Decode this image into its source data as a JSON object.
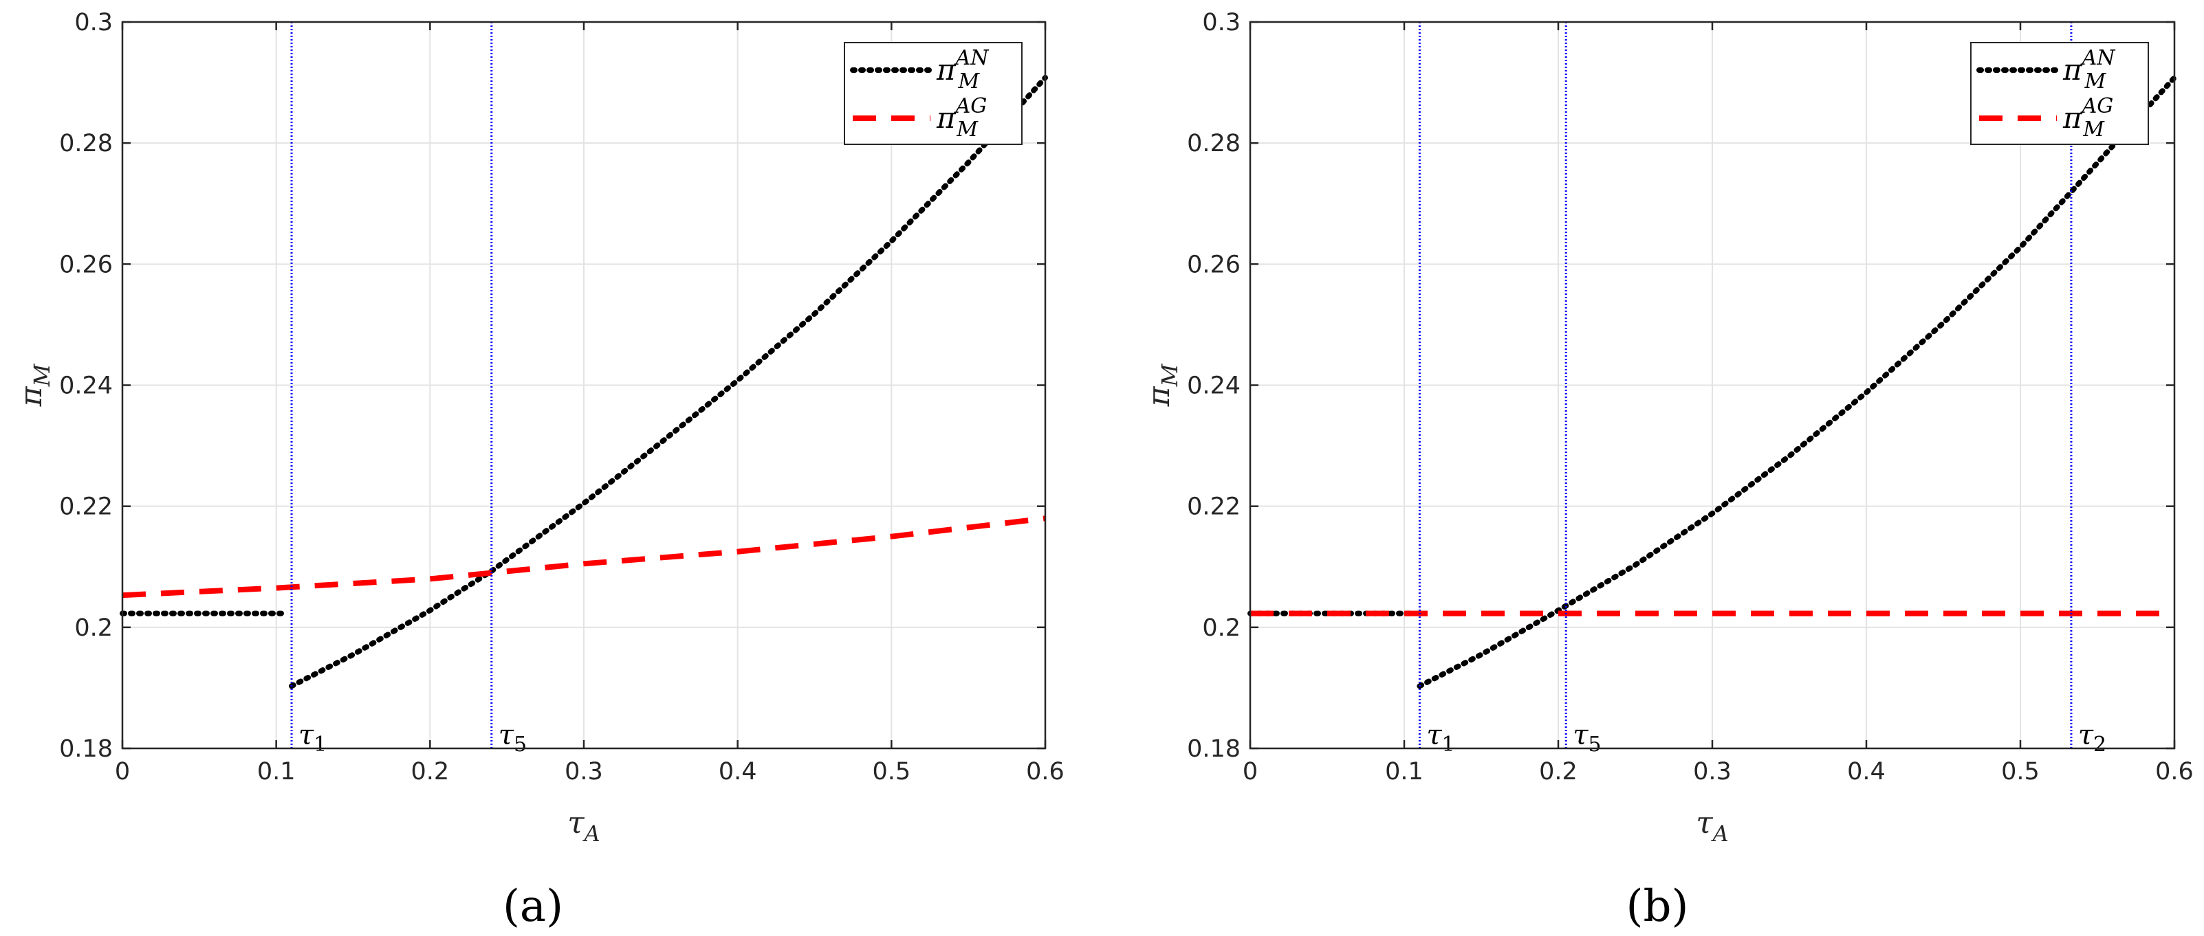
{
  "chart_data": [
    {
      "type": "line",
      "caption": "(a)",
      "xlabel": "τA",
      "ylabel": "πM",
      "xlim": [
        0,
        0.6
      ],
      "ylim": [
        0.18,
        0.3
      ],
      "xticks": [
        "0",
        "0.1",
        "0.2",
        "0.3",
        "0.4",
        "0.5",
        "0.6"
      ],
      "yticks": [
        "0.18",
        "0.2",
        "0.22",
        "0.24",
        "0.26",
        "0.28",
        "0.3"
      ],
      "grid": true,
      "legend_position": "top-right",
      "series": [
        {
          "name": "π_M^AN",
          "style": "dotted",
          "color": "#000000",
          "segments": [
            [
              [
                0,
                0.2023
              ],
              [
                0.107,
                0.2023
              ]
            ],
            [
              [
                0.11,
                0.1903
              ],
              [
                0.15,
                0.1955
              ],
              [
                0.2,
                0.2028
              ],
              [
                0.24,
                0.2093
              ],
              [
                0.3,
                0.2205
              ],
              [
                0.35,
                0.2305
              ],
              [
                0.4,
                0.2408
              ],
              [
                0.45,
                0.2518
              ],
              [
                0.5,
                0.2638
              ],
              [
                0.55,
                0.2768
              ],
              [
                0.6,
                0.2908
              ]
            ]
          ]
        },
        {
          "name": "π_M^AG",
          "style": "dashed",
          "color": "#ff0000",
          "segments": [
            [
              [
                0,
                0.2053
              ],
              [
                0.1,
                0.2065
              ],
              [
                0.2,
                0.208
              ],
              [
                0.24,
                0.209
              ],
              [
                0.3,
                0.2105
              ],
              [
                0.4,
                0.2125
              ],
              [
                0.5,
                0.215
              ],
              [
                0.6,
                0.218
              ]
            ]
          ]
        }
      ],
      "markers": [
        {
          "label_base": "τ",
          "label_sub": "1",
          "x": 0.11
        },
        {
          "label_base": "τ",
          "label_sub": "5",
          "x": 0.24
        }
      ]
    },
    {
      "type": "line",
      "caption": "(b)",
      "xlabel": "τA",
      "ylabel": "πM",
      "xlim": [
        0,
        0.6
      ],
      "ylim": [
        0.18,
        0.3
      ],
      "xticks": [
        "0",
        "0.1",
        "0.2",
        "0.3",
        "0.4",
        "0.5",
        "0.6"
      ],
      "yticks": [
        "0.18",
        "0.2",
        "0.22",
        "0.24",
        "0.26",
        "0.28",
        "0.3"
      ],
      "grid": true,
      "legend_position": "top-right",
      "series": [
        {
          "name": "π_M^AN",
          "style": "dotted",
          "color": "#000000",
          "segments": [
            [
              [
                0,
                0.2023
              ],
              [
                0.107,
                0.2023
              ]
            ],
            [
              [
                0.11,
                0.1903
              ],
              [
                0.15,
                0.1955
              ],
              [
                0.2,
                0.2028
              ],
              [
                0.25,
                0.2103
              ],
              [
                0.3,
                0.2188
              ],
              [
                0.35,
                0.2283
              ],
              [
                0.4,
                0.2388
              ],
              [
                0.45,
                0.2503
              ],
              [
                0.5,
                0.2628
              ],
              [
                0.535,
                0.2725
              ],
              [
                0.6,
                0.2908
              ]
            ]
          ]
        },
        {
          "name": "π_M^AG",
          "style": "dashed",
          "color": "#ff0000",
          "segments": [
            [
              [
                0,
                0.2023
              ],
              [
                0.6,
                0.2023
              ]
            ]
          ]
        }
      ],
      "markers": [
        {
          "label_base": "τ",
          "label_sub": "1",
          "x": 0.11
        },
        {
          "label_base": "τ",
          "label_sub": "5",
          "x": 0.205
        },
        {
          "label_base": "τ",
          "label_sub": "2",
          "x": 0.533
        }
      ]
    }
  ],
  "legend": {
    "symbol": "π",
    "subscript": "M",
    "superscripts": [
      "AN",
      "AG"
    ]
  }
}
